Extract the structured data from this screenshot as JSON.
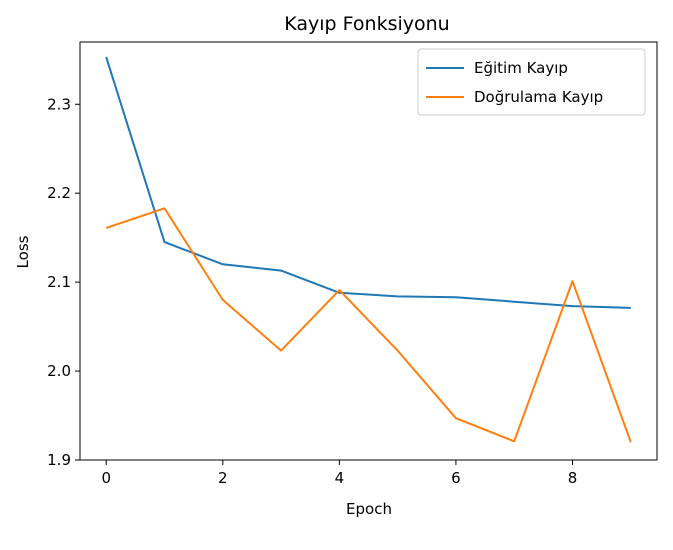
{
  "chart_data": {
    "type": "line",
    "title": "Kayıp Fonksiyonu",
    "xlabel": "Epoch",
    "ylabel": "Loss",
    "xlim": [
      -0.45,
      9.45
    ],
    "ylim": [
      1.9,
      2.37
    ],
    "xticks": [
      0,
      2,
      4,
      6,
      8
    ],
    "yticks": [
      1.9,
      2.0,
      2.1,
      2.2,
      2.3
    ],
    "ytick_labels": [
      "1.9",
      "2.0",
      "2.1",
      "2.2",
      "2.3"
    ],
    "grid": false,
    "legend_position": "top-right",
    "x": [
      0,
      1,
      2,
      3,
      4,
      5,
      6,
      7,
      8,
      9
    ],
    "series": [
      {
        "name": "Eğitim Kayıp",
        "color": "#1f77b4",
        "values": [
          2.353,
          2.145,
          2.12,
          2.113,
          2.088,
          2.084,
          2.083,
          2.078,
          2.073,
          2.071
        ]
      },
      {
        "name": "Doğrulama Kayıp",
        "color": "#ff7f0e",
        "values": [
          2.161,
          2.183,
          2.08,
          2.023,
          2.091,
          2.023,
          1.947,
          1.921,
          2.101,
          1.92
        ]
      }
    ]
  }
}
